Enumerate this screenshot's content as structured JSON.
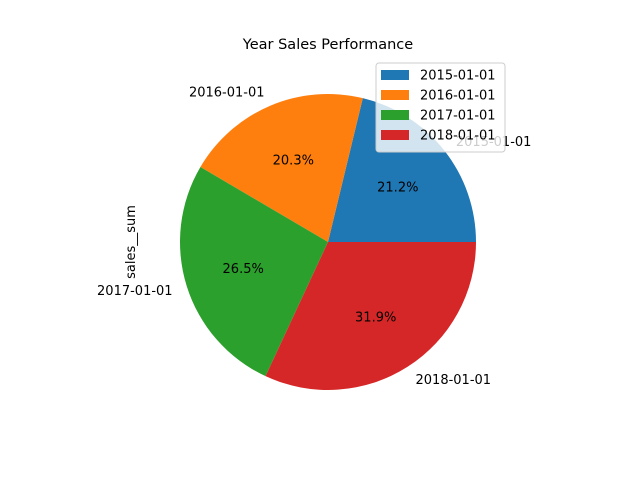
{
  "chart_data": {
    "type": "pie",
    "title": "Year Sales Performance",
    "ylabel": "sales__sum",
    "categories": [
      "2015-01-01",
      "2016-01-01",
      "2017-01-01",
      "2018-01-01"
    ],
    "values": [
      21.2,
      20.3,
      26.5,
      31.9
    ],
    "value_labels": [
      "21.2%",
      "20.3%",
      "26.5%",
      "31.9%"
    ],
    "colors": [
      "#1f77b4",
      "#ff7f0e",
      "#2ca02c",
      "#d62728"
    ],
    "legend": {
      "placement": "upper right",
      "entries": [
        "2015-01-01",
        "2016-01-01",
        "2017-01-01",
        "2018-01-01"
      ]
    }
  }
}
